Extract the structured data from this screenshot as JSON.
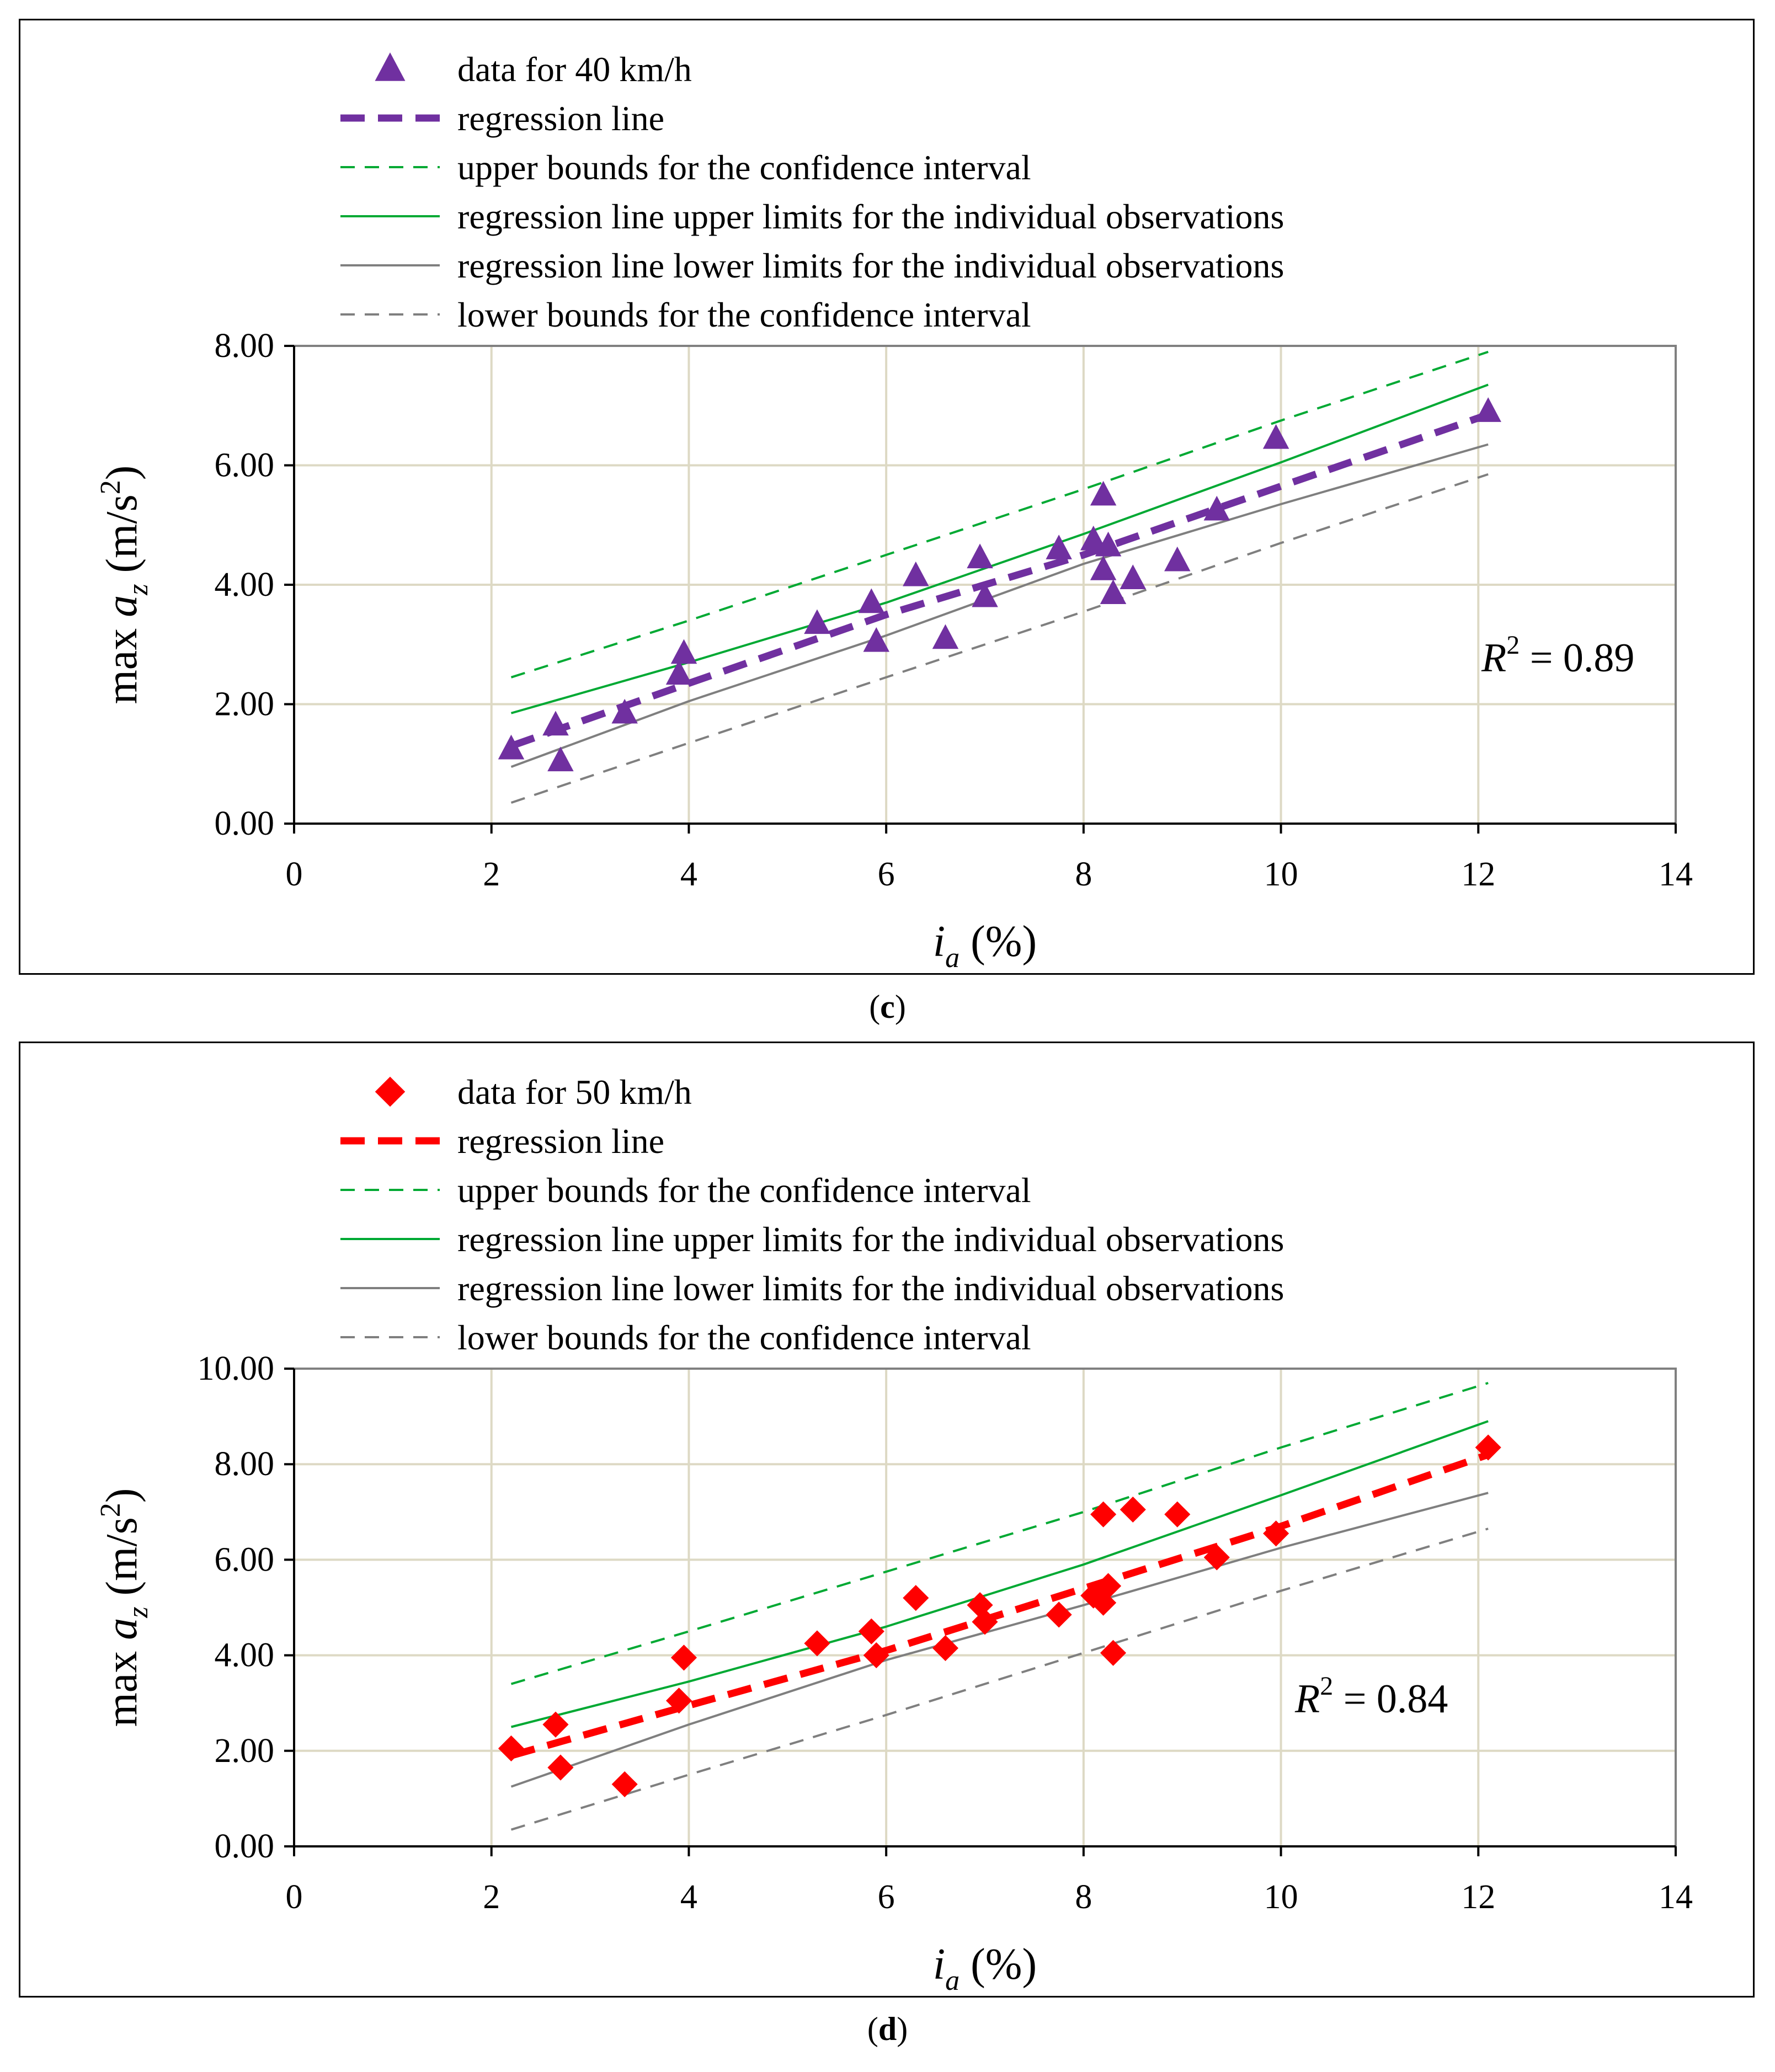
{
  "colors": {
    "purple": "#7030A0",
    "red": "#FF0000",
    "green": "#00A933",
    "gray": "#7F7F7F",
    "grid": "#DDD9C4",
    "axis": "#808080"
  },
  "chart_data": [
    {
      "type": "scatter",
      "panel_label": "c",
      "legend": [
        {
          "key": "data",
          "label": "data for 40 km/h",
          "marker": "triangle"
        },
        {
          "key": "reg",
          "label": "regression line"
        },
        {
          "key": "ciU",
          "label": "upper bounds for the confidence interval"
        },
        {
          "key": "piU",
          "label": "regression line upper limits for the individual observations"
        },
        {
          "key": "piL",
          "label": "regression line lower limits for the individual observations"
        },
        {
          "key": "ciL",
          "label": "lower bounds for the confidence interval"
        }
      ],
      "ylabel_main": "max ",
      "ylabel_var": "a",
      "ylabel_sub": "z",
      "ylabel_unit_open": " (m/s",
      "ylabel_unit_sup": "2",
      "ylabel_unit_close": ")",
      "xlabel_var": "i",
      "xlabel_sub": "a",
      "xlabel_unit": " (%)",
      "xlim": [
        0,
        14
      ],
      "ylim": [
        0,
        8
      ],
      "xticks": [
        0,
        2,
        4,
        6,
        8,
        10,
        12,
        14
      ],
      "yticks": [
        0,
        2,
        4,
        6,
        8
      ],
      "xtick_labels": [
        "0",
        "2",
        "4",
        "6",
        "8",
        "10",
        "12",
        "14"
      ],
      "ytick_labels": [
        "0.00",
        "2.00",
        "4.00",
        "6.00",
        "8.00"
      ],
      "r2_label": "R",
      "r2_sup": "2",
      "r2_value": " = 0.89",
      "points": [
        [
          2.2,
          1.25
        ],
        [
          2.65,
          1.65
        ],
        [
          2.7,
          1.05
        ],
        [
          3.35,
          1.85
        ],
        [
          3.9,
          2.5
        ],
        [
          3.95,
          2.85
        ],
        [
          5.3,
          3.35
        ],
        [
          5.85,
          3.7
        ],
        [
          5.9,
          3.05
        ],
        [
          6.3,
          4.15
        ],
        [
          6.6,
          3.1
        ],
        [
          6.95,
          4.45
        ],
        [
          7.0,
          3.8
        ],
        [
          7.75,
          4.6
        ],
        [
          8.1,
          4.75
        ],
        [
          8.2,
          5.5
        ],
        [
          8.2,
          4.25
        ],
        [
          8.25,
          4.65
        ],
        [
          8.3,
          3.85
        ],
        [
          8.5,
          4.1
        ],
        [
          8.95,
          4.4
        ],
        [
          9.35,
          5.25
        ],
        [
          9.95,
          6.45
        ],
        [
          12.1,
          6.9
        ]
      ],
      "lines": {
        "reg": [
          [
            2.2,
            1.3
          ],
          [
            4.0,
            2.35
          ],
          [
            6.0,
            3.5
          ],
          [
            8.0,
            4.5
          ],
          [
            10.0,
            5.65
          ],
          [
            12.1,
            6.85
          ]
        ],
        "ciU": [
          [
            2.2,
            2.45
          ],
          [
            4.0,
            3.4
          ],
          [
            6.0,
            4.5
          ],
          [
            8.0,
            5.6
          ],
          [
            10.0,
            6.75
          ],
          [
            12.1,
            7.9
          ]
        ],
        "piU": [
          [
            2.2,
            1.85
          ],
          [
            4.0,
            2.7
          ],
          [
            6.0,
            3.7
          ],
          [
            8.0,
            4.85
          ],
          [
            10.0,
            6.05
          ],
          [
            12.1,
            7.35
          ]
        ],
        "piL": [
          [
            2.2,
            0.95
          ],
          [
            4.0,
            2.05
          ],
          [
            6.0,
            3.15
          ],
          [
            8.0,
            4.35
          ],
          [
            10.0,
            5.35
          ],
          [
            12.1,
            6.35
          ]
        ],
        "ciL": [
          [
            2.2,
            0.35
          ],
          [
            4.0,
            1.35
          ],
          [
            6.0,
            2.45
          ],
          [
            8.0,
            3.55
          ],
          [
            10.0,
            4.7
          ],
          [
            12.1,
            5.85
          ]
        ]
      },
      "data_color": "#7030A0"
    },
    {
      "type": "scatter",
      "panel_label": "d",
      "legend": [
        {
          "key": "data",
          "label": "data for 50 km/h",
          "marker": "diamond"
        },
        {
          "key": "reg",
          "label": "regression line"
        },
        {
          "key": "ciU",
          "label": "upper bounds for the confidence interval"
        },
        {
          "key": "piU",
          "label": "regression line upper limits for the individual observations"
        },
        {
          "key": "piL",
          "label": "regression line lower limits for the individual observations"
        },
        {
          "key": "ciL",
          "label": "lower bounds for the confidence interval"
        }
      ],
      "ylabel_main": "max ",
      "ylabel_var": "a",
      "ylabel_sub": "z",
      "ylabel_unit_open": " (m/s",
      "ylabel_unit_sup": "2",
      "ylabel_unit_close": ")",
      "xlabel_var": "i",
      "xlabel_sub": "a",
      "xlabel_unit": " (%)",
      "xlim": [
        0,
        14
      ],
      "ylim": [
        0,
        10
      ],
      "xticks": [
        0,
        2,
        4,
        6,
        8,
        10,
        12,
        14
      ],
      "yticks": [
        0,
        2,
        4,
        6,
        8,
        10
      ],
      "xtick_labels": [
        "0",
        "2",
        "4",
        "6",
        "8",
        "10",
        "12",
        "14"
      ],
      "ytick_labels": [
        "0.00",
        "2.00",
        "4.00",
        "6.00",
        "8.00",
        "10.00"
      ],
      "r2_label": "R",
      "r2_sup": "2",
      "r2_value": " = 0.84",
      "points": [
        [
          2.2,
          2.05
        ],
        [
          2.65,
          2.55
        ],
        [
          2.7,
          1.65
        ],
        [
          3.35,
          1.3
        ],
        [
          3.9,
          3.05
        ],
        [
          3.95,
          3.95
        ],
        [
          5.3,
          4.25
        ],
        [
          5.85,
          4.5
        ],
        [
          5.9,
          4.0
        ],
        [
          6.3,
          5.2
        ],
        [
          6.6,
          4.15
        ],
        [
          6.95,
          5.05
        ],
        [
          7.0,
          4.7
        ],
        [
          7.75,
          4.85
        ],
        [
          8.1,
          5.25
        ],
        [
          8.2,
          6.95
        ],
        [
          8.2,
          5.1
        ],
        [
          8.25,
          5.45
        ],
        [
          8.3,
          4.05
        ],
        [
          8.5,
          7.05
        ],
        [
          8.95,
          6.95
        ],
        [
          9.35,
          6.05
        ],
        [
          9.95,
          6.55
        ],
        [
          12.1,
          8.35
        ]
      ],
      "lines": {
        "reg": [
          [
            2.2,
            1.9
          ],
          [
            4.0,
            2.95
          ],
          [
            6.0,
            4.1
          ],
          [
            8.0,
            5.4
          ],
          [
            10.0,
            6.7
          ],
          [
            12.1,
            8.2
          ]
        ],
        "ciU": [
          [
            2.2,
            3.4
          ],
          [
            4.0,
            4.5
          ],
          [
            6.0,
            5.75
          ],
          [
            8.0,
            7.0
          ],
          [
            10.0,
            8.35
          ],
          [
            12.1,
            9.7
          ]
        ],
        "piU": [
          [
            2.2,
            2.5
          ],
          [
            4.0,
            3.45
          ],
          [
            6.0,
            4.6
          ],
          [
            8.0,
            5.9
          ],
          [
            10.0,
            7.35
          ],
          [
            12.1,
            8.9
          ]
        ],
        "piL": [
          [
            2.2,
            1.25
          ],
          [
            4.0,
            2.55
          ],
          [
            6.0,
            3.9
          ],
          [
            8.0,
            5.05
          ],
          [
            10.0,
            6.25
          ],
          [
            12.1,
            7.4
          ]
        ],
        "ciL": [
          [
            2.2,
            0.35
          ],
          [
            4.0,
            1.5
          ],
          [
            6.0,
            2.75
          ],
          [
            8.0,
            4.05
          ],
          [
            10.0,
            5.35
          ],
          [
            12.1,
            6.65
          ]
        ]
      },
      "data_color": "#FF0000"
    }
  ]
}
